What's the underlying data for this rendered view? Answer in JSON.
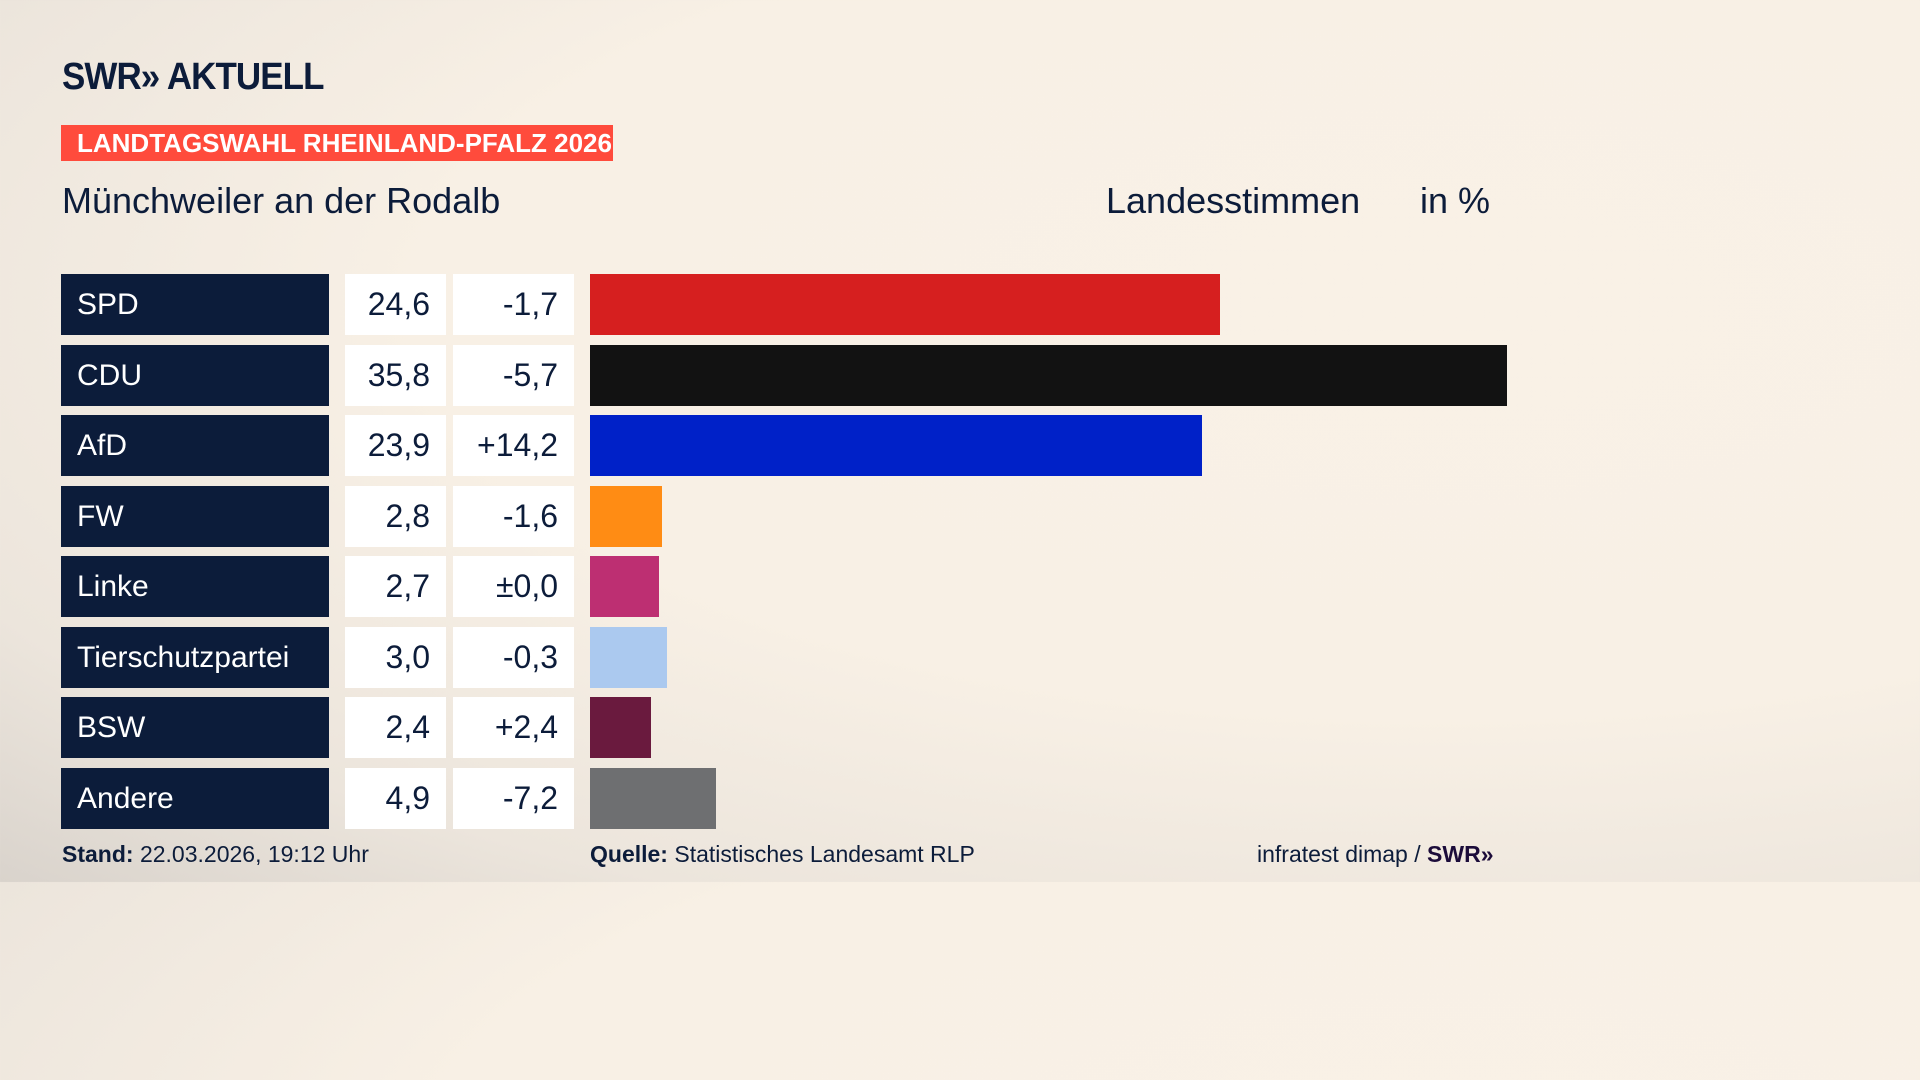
{
  "header": {
    "logo": "SWR» AKTUELL",
    "badge": "LANDTAGSWAHL RHEINLAND-PFALZ 2026",
    "place": "Münchweiler an der Rodalb",
    "vote_type": "Landesstimmen",
    "unit": "in %"
  },
  "chart_data": {
    "type": "bar",
    "orientation": "horizontal",
    "categories": [
      "SPD",
      "CDU",
      "AfD",
      "FW",
      "Linke",
      "Tierschutzpartei",
      "BSW",
      "Andere"
    ],
    "values": [
      24.6,
      35.8,
      23.9,
      2.8,
      2.7,
      3.0,
      2.4,
      4.9
    ],
    "value_labels": [
      "24,6",
      "35,8",
      "23,9",
      "2,8",
      "2,7",
      "3,0",
      "2,4",
      "4,9"
    ],
    "diff_labels": [
      "-1,7",
      "-5,7",
      "+14,2",
      "-1,6",
      "±0,0",
      "-0,3",
      "+2,4",
      "-7,2"
    ],
    "colors": [
      "#d61f1f",
      "#121212",
      "#0021c8",
      "#ff8c14",
      "#bd2f72",
      "#abc9ef",
      "#6a1a3e",
      "#6e6f71"
    ],
    "xlim": [
      0,
      35.8
    ]
  },
  "footer": {
    "stand_label": "Stand:",
    "stand_value": "22.03.2026, 19:12 Uhr",
    "source_label": "Quelle:",
    "source_value": "Statistisches Landesamt RLP",
    "credit": "infratest dimap /",
    "credit_logo": "SWR»"
  }
}
